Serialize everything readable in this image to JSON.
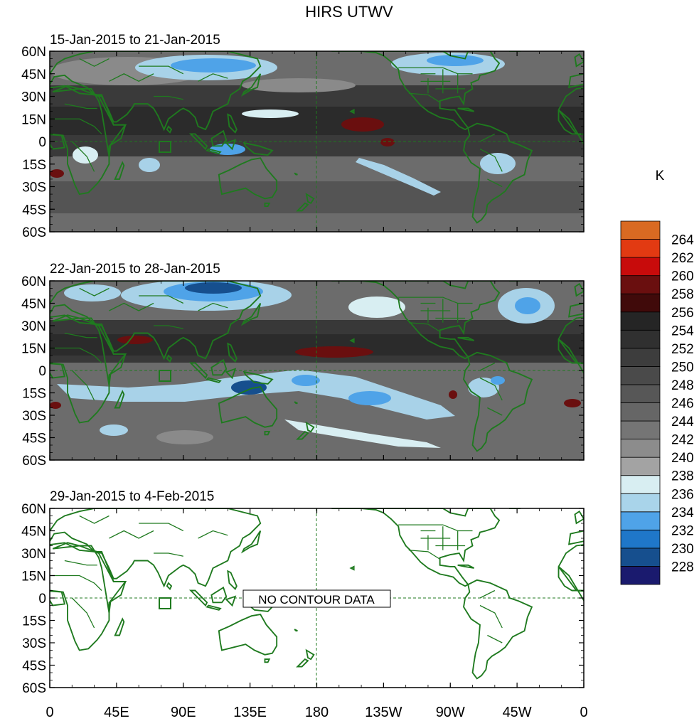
{
  "figure": {
    "title": "HIRS UTWV",
    "units_label": "K"
  },
  "chart_data": {
    "type": "heatmap",
    "title": "HIRS UTWV",
    "panels": [
      {
        "label": "15-Jan-2015 to 21-Jan-2015",
        "has_data": true
      },
      {
        "label": "22-Jan-2015 to 28-Jan-2015",
        "has_data": true
      },
      {
        "label": "29-Jan-2015 to 4-Feb-2015",
        "has_data": false,
        "message": "NO CONTOUR DATA"
      }
    ],
    "x_ticks": [
      "0",
      "45E",
      "90E",
      "135E",
      "180",
      "135W",
      "90W",
      "45W",
      "0"
    ],
    "y_ticks": [
      "60N",
      "45N",
      "30N",
      "15N",
      "0",
      "15S",
      "30S",
      "45S",
      "60S"
    ],
    "colorbar": {
      "units": "K",
      "levels": [
        228,
        230,
        232,
        234,
        236,
        238,
        240,
        242,
        244,
        246,
        248,
        250,
        252,
        254,
        256,
        258,
        260,
        262,
        264
      ],
      "colors": [
        "#1a1a6e",
        "#164f8e",
        "#1f77c9",
        "#4fa3e8",
        "#a9d4ea",
        "#d8eef2",
        "#a3a3a3",
        "#8c8c8c",
        "#757575",
        "#666666",
        "#575757",
        "#4a4a4a",
        "#3d3d3d",
        "#303030",
        "#252525",
        "#400a0a",
        "#6a0f0f",
        "#c80b0b",
        "#e23a12",
        "#d96a22"
      ]
    },
    "coastline_color": "#1f7a1f"
  }
}
